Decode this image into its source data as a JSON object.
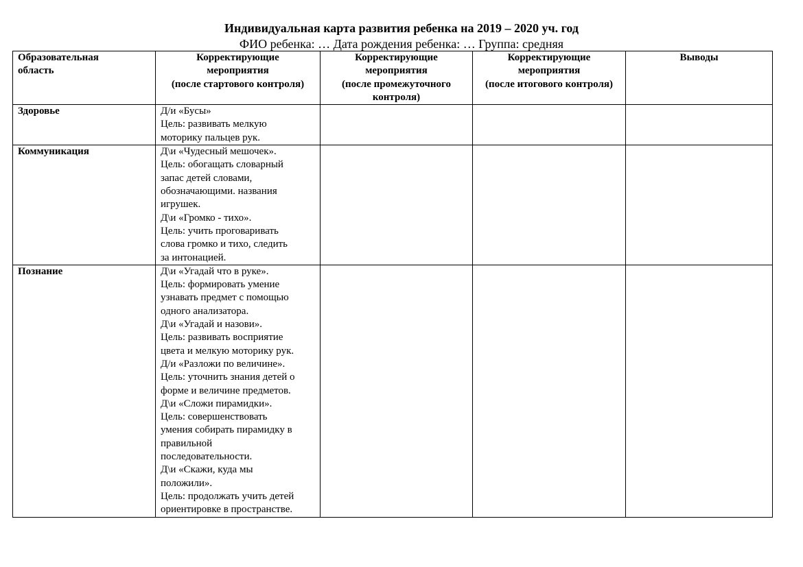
{
  "document": {
    "title": "Индивидуальная карта развития ребенка на 2019 – 2020 уч. год",
    "subtitle": "ФИО ребенка: … Дата рождения ребенка: … Группа: средняя"
  },
  "table": {
    "headers": [
      [
        "Образовательная",
        "область"
      ],
      [
        "Корректирующие",
        "мероприятия",
        "(после стартового контроля)"
      ],
      [
        "Корректирующие",
        "мероприятия",
        "(после промежуточного",
        "контроля)"
      ],
      [
        "Корректирующие",
        "мероприятия",
        "(после итогового контроля)"
      ],
      [
        "Выводы"
      ]
    ],
    "rows": [
      {
        "area": "Здоровье",
        "start": [
          "Д/и «Бусы»",
          "Цель: развивать мелкую",
          "моторику пальцев рук."
        ],
        "middle": "",
        "final": "",
        "conclusions": ""
      },
      {
        "area": "Коммуникация",
        "start": [
          "Д\\и «Чудесный мешочек».",
          "Цель: обогащать словарный",
          "запас детей словами,",
          "обозначающими. названия",
          "игрушек.",
          "Д\\и «Громко - тихо».",
          "Цель: учить проговаривать",
          "слова громко и тихо, следить",
          "за интонацией."
        ],
        "middle": "",
        "final": "",
        "conclusions": ""
      },
      {
        "area": "Познание",
        "start": [
          "Д\\и «Угадай что в руке».",
          "Цель: формировать умение",
          "узнавать предмет с помощью",
          "одного анализатора.",
          "Д\\и «Угадай и назови».",
          "Цель: развивать восприятие",
          "цвета и мелкую моторику рук.",
          "Д/и «Разложи по величине».",
          "Цель: уточнить знания детей о",
          "форме и величине предметов.",
          "Д\\и «Сложи пирамидки».",
          "Цель: совершенствовать",
          "умения собирать пирамидку в",
          "правильной",
          "последовательности.",
          "Д\\и «Скажи, куда мы",
          "положили».",
          "Цель: продолжать учить детей",
          "ориентировке в пространстве."
        ],
        "middle": "",
        "final": "",
        "conclusions": ""
      }
    ]
  }
}
